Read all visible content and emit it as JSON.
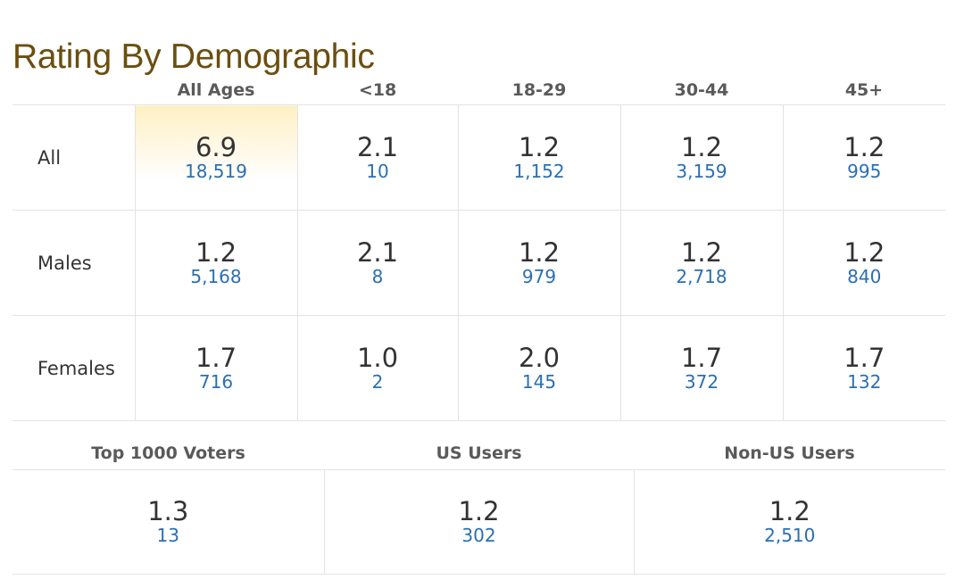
{
  "title": "Rating By Demographic",
  "columns": [
    "All Ages",
    "<18",
    "18-29",
    "30-44",
    "45+"
  ],
  "rows": [
    {
      "label": "All",
      "cells": [
        {
          "rating": "6.9",
          "votes": "18,519"
        },
        {
          "rating": "2.1",
          "votes": "10"
        },
        {
          "rating": "1.2",
          "votes": "1,152"
        },
        {
          "rating": "1.2",
          "votes": "3,159"
        },
        {
          "rating": "1.2",
          "votes": "995"
        }
      ]
    },
    {
      "label": "Males",
      "cells": [
        {
          "rating": "1.2",
          "votes": "5,168"
        },
        {
          "rating": "2.1",
          "votes": "8"
        },
        {
          "rating": "1.2",
          "votes": "979"
        },
        {
          "rating": "1.2",
          "votes": "2,718"
        },
        {
          "rating": "1.2",
          "votes": "840"
        }
      ]
    },
    {
      "label": "Females",
      "cells": [
        {
          "rating": "1.7",
          "votes": "716"
        },
        {
          "rating": "1.0",
          "votes": "2"
        },
        {
          "rating": "2.0",
          "votes": "145"
        },
        {
          "rating": "1.7",
          "votes": "372"
        },
        {
          "rating": "1.7",
          "votes": "132"
        }
      ]
    }
  ],
  "groups": [
    {
      "label": "Top 1000 Voters",
      "rating": "1.3",
      "votes": "13"
    },
    {
      "label": "US Users",
      "rating": "1.2",
      "votes": "302"
    },
    {
      "label": "Non-US Users",
      "rating": "1.2",
      "votes": "2,510"
    }
  ],
  "colors": {
    "title": "#6b4e0f",
    "votes_link": "#2a6fb2",
    "highlight": "#fff0c4"
  }
}
